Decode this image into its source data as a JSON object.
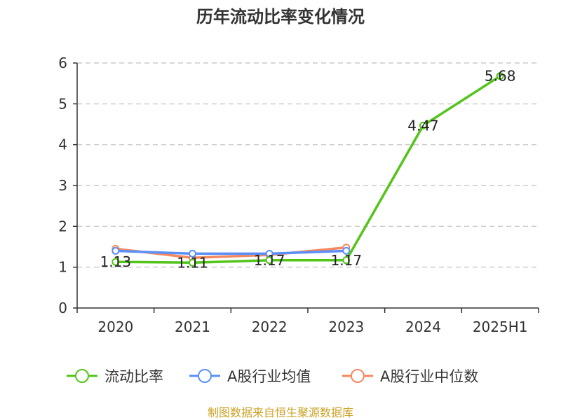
{
  "chart_data": {
    "type": "line",
    "title": "历年流动比率变化情况",
    "categories": [
      "2020",
      "2021",
      "2022",
      "2023",
      "2024",
      "2025H1"
    ],
    "ylim": [
      0,
      6
    ],
    "yticks": [
      "0",
      "1",
      "2",
      "3",
      "4",
      "5",
      "6"
    ],
    "grid": true,
    "legend_position": "bottom",
    "series": [
      {
        "name": "流动比率",
        "color": "#52c41a",
        "values": [
          1.13,
          1.11,
          1.17,
          1.17,
          4.47,
          5.68
        ],
        "labels": [
          "1.13",
          "1.11",
          "1.17",
          "1.17",
          "4.47",
          "5.68"
        ]
      },
      {
        "name": "A股行业均值",
        "color": "#5b8ff9",
        "values": [
          1.4,
          1.33,
          1.33,
          1.4,
          null,
          null
        ]
      },
      {
        "name": "A股行业中位数",
        "color": "#f4895f",
        "values": [
          1.45,
          1.23,
          1.3,
          1.48,
          null,
          null
        ]
      }
    ],
    "source": "制图数据来自恒生聚源数据库"
  }
}
